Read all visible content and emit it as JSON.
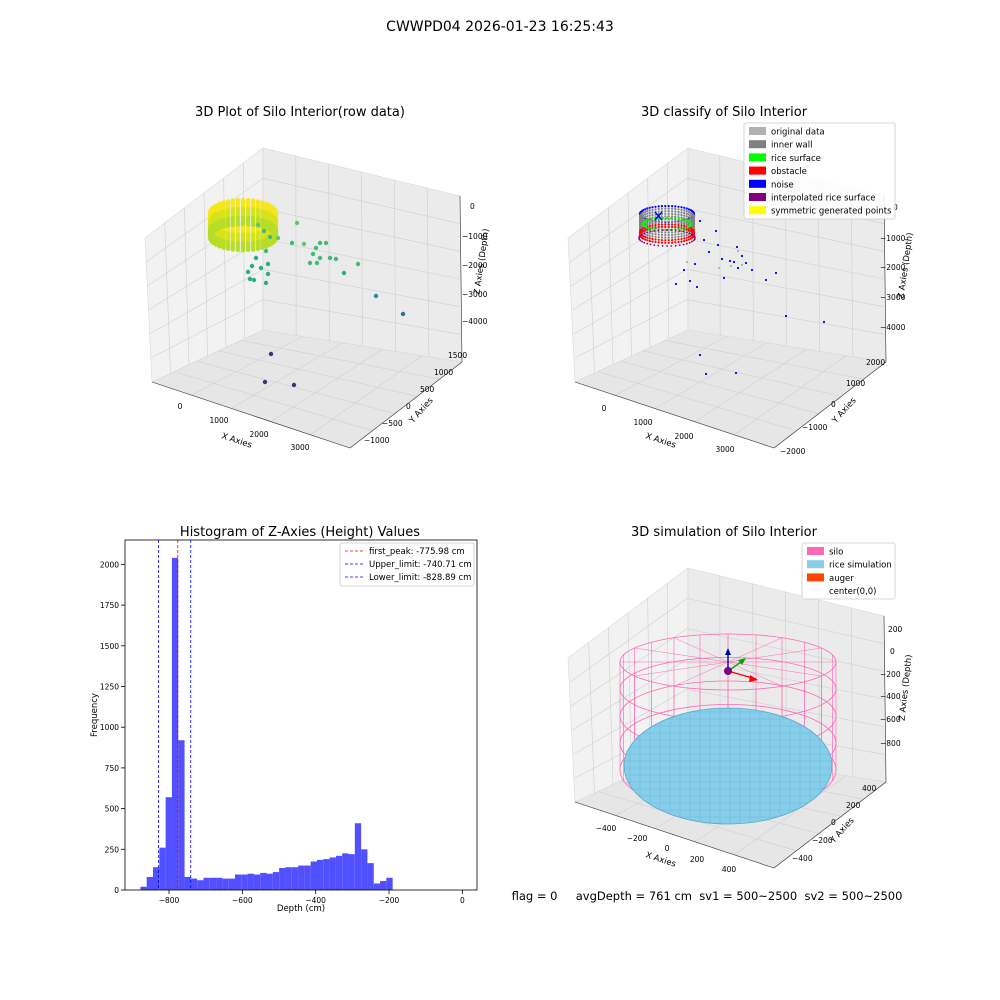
{
  "suptitle": "CWWPD04 2026-01-23 16:25:43",
  "footer_text": "flag = 0     avgDepth = 761 cm  sv1 = 500~2500  sv2 = 500~2500",
  "panel1": {
    "title": "3D Plot of Silo Interior(row data)",
    "xlabel": "X Axies",
    "ylabel": "Y Axies",
    "zlabel": "Z Axies (Depth)",
    "xticks": [
      "0",
      "1000",
      "2000",
      "3000"
    ],
    "yticks": [
      "1500",
      "1000",
      "500",
      "0",
      "−500",
      "−1000"
    ],
    "zticks": [
      "0",
      "−1000",
      "−2000",
      "−3000",
      "−4000"
    ]
  },
  "panel2": {
    "title": "3D classify of Silo Interior",
    "xlabel": "X Axies",
    "ylabel": "Y Axies",
    "zlabel": "Z Axies (Depth)",
    "xticks": [
      "0",
      "1000",
      "2000",
      "3000"
    ],
    "yticks": [
      "2000",
      "1000",
      "0",
      "−1000",
      "−2000"
    ],
    "zticks": [
      "0",
      "−1000",
      "−2000",
      "−3000",
      "−4000"
    ],
    "legend": [
      {
        "label": "original data",
        "color": "#b0b0b0"
      },
      {
        "label": "inner wall",
        "color": "#808080"
      },
      {
        "label": "rice surface",
        "color": "#00ff00"
      },
      {
        "label": "obstacle",
        "color": "#ff0000"
      },
      {
        "label": "noise",
        "color": "#0000ff"
      },
      {
        "label": "interpolated rice surface",
        "color": "#800080"
      },
      {
        "label": "symmetric generated points",
        "color": "#ffff00"
      }
    ]
  },
  "panel4": {
    "title": "3D simulation of Silo Interior",
    "xlabel": "X Axies",
    "ylabel": "Y Axies",
    "zlabel": "Z Axies (Depth)",
    "xticks": [
      "−400",
      "−200",
      "0",
      "200",
      "400"
    ],
    "yticks": [
      "400",
      "200",
      "0",
      "−200",
      "−400"
    ],
    "zticks": [
      "200",
      "0",
      "−200",
      "−400",
      "−600",
      "−800"
    ],
    "legend": [
      {
        "label": "silo",
        "color": "#ff69b4"
      },
      {
        "label": "rice simulation",
        "color": "#87ceeb"
      },
      {
        "label": "auger",
        "color": "#ff4500"
      },
      {
        "label": "center(0,0)",
        "color": "#ffffff"
      }
    ]
  },
  "chart_data": [
    {
      "type": "scatter",
      "title": "3D Plot of Silo Interior(row data)",
      "xlabel": "X Axies",
      "ylabel": "Y Axies",
      "zlabel": "Z Axies (Depth)",
      "xlim": [
        -500,
        3800
      ],
      "ylim": [
        -1200,
        1600
      ],
      "zlim": [
        -4500,
        200
      ],
      "colormap": "viridis"
    },
    {
      "type": "scatter",
      "title": "3D classify of Silo Interior",
      "xlabel": "X Axies",
      "ylabel": "Y Axies",
      "zlabel": "Z Axies (Depth)",
      "xlim": [
        -500,
        3800
      ],
      "ylim": [
        -2200,
        2400
      ],
      "zlim": [
        -4500,
        200
      ],
      "legend_location": "top-right"
    },
    {
      "type": "bar",
      "title": "Histogram of Z-Axies (Height) Values",
      "xlabel": "Depth (cm)",
      "ylabel": "Frequency",
      "xlim": [
        -920,
        40
      ],
      "ylim": [
        0,
        2150
      ],
      "xticks": [
        -800,
        -600,
        -400,
        -200,
        0
      ],
      "xtick_labels": [
        "−800",
        "−600",
        "−400",
        "−200",
        "0"
      ],
      "yticks": [
        0,
        250,
        500,
        750,
        1000,
        1250,
        1500,
        1750,
        2000
      ],
      "bar_color": "#5050ff",
      "bin_start": -878,
      "bin_width": 17.2,
      "values": [
        20,
        80,
        140,
        260,
        570,
        2040,
        920,
        80,
        70,
        60,
        75,
        75,
        75,
        70,
        70,
        95,
        95,
        100,
        95,
        105,
        100,
        110,
        135,
        140,
        140,
        150,
        150,
        175,
        185,
        190,
        200,
        210,
        225,
        220,
        410,
        250,
        165,
        40,
        55,
        75
      ],
      "lines": [
        {
          "name": "first_peak: -775.98 cm",
          "x": -775.98,
          "color": "#ff0000"
        },
        {
          "name": "Upper_limit: -740.71 cm",
          "x": -740.71,
          "color": "#0000ff"
        },
        {
          "name": "Lower_limit: -828.89 cm",
          "x": -828.89,
          "color": "#0000ff"
        }
      ],
      "legend_location": "top-right"
    },
    {
      "type": "scatter",
      "title": "3D simulation of Silo Interior",
      "xlabel": "X Axies",
      "ylabel": "Y Axies",
      "zlabel": "Z Axies (Depth)",
      "xlim": [
        -500,
        500
      ],
      "ylim": [
        -500,
        500
      ],
      "zlim": [
        -900,
        250
      ],
      "legend_location": "top-right"
    }
  ]
}
